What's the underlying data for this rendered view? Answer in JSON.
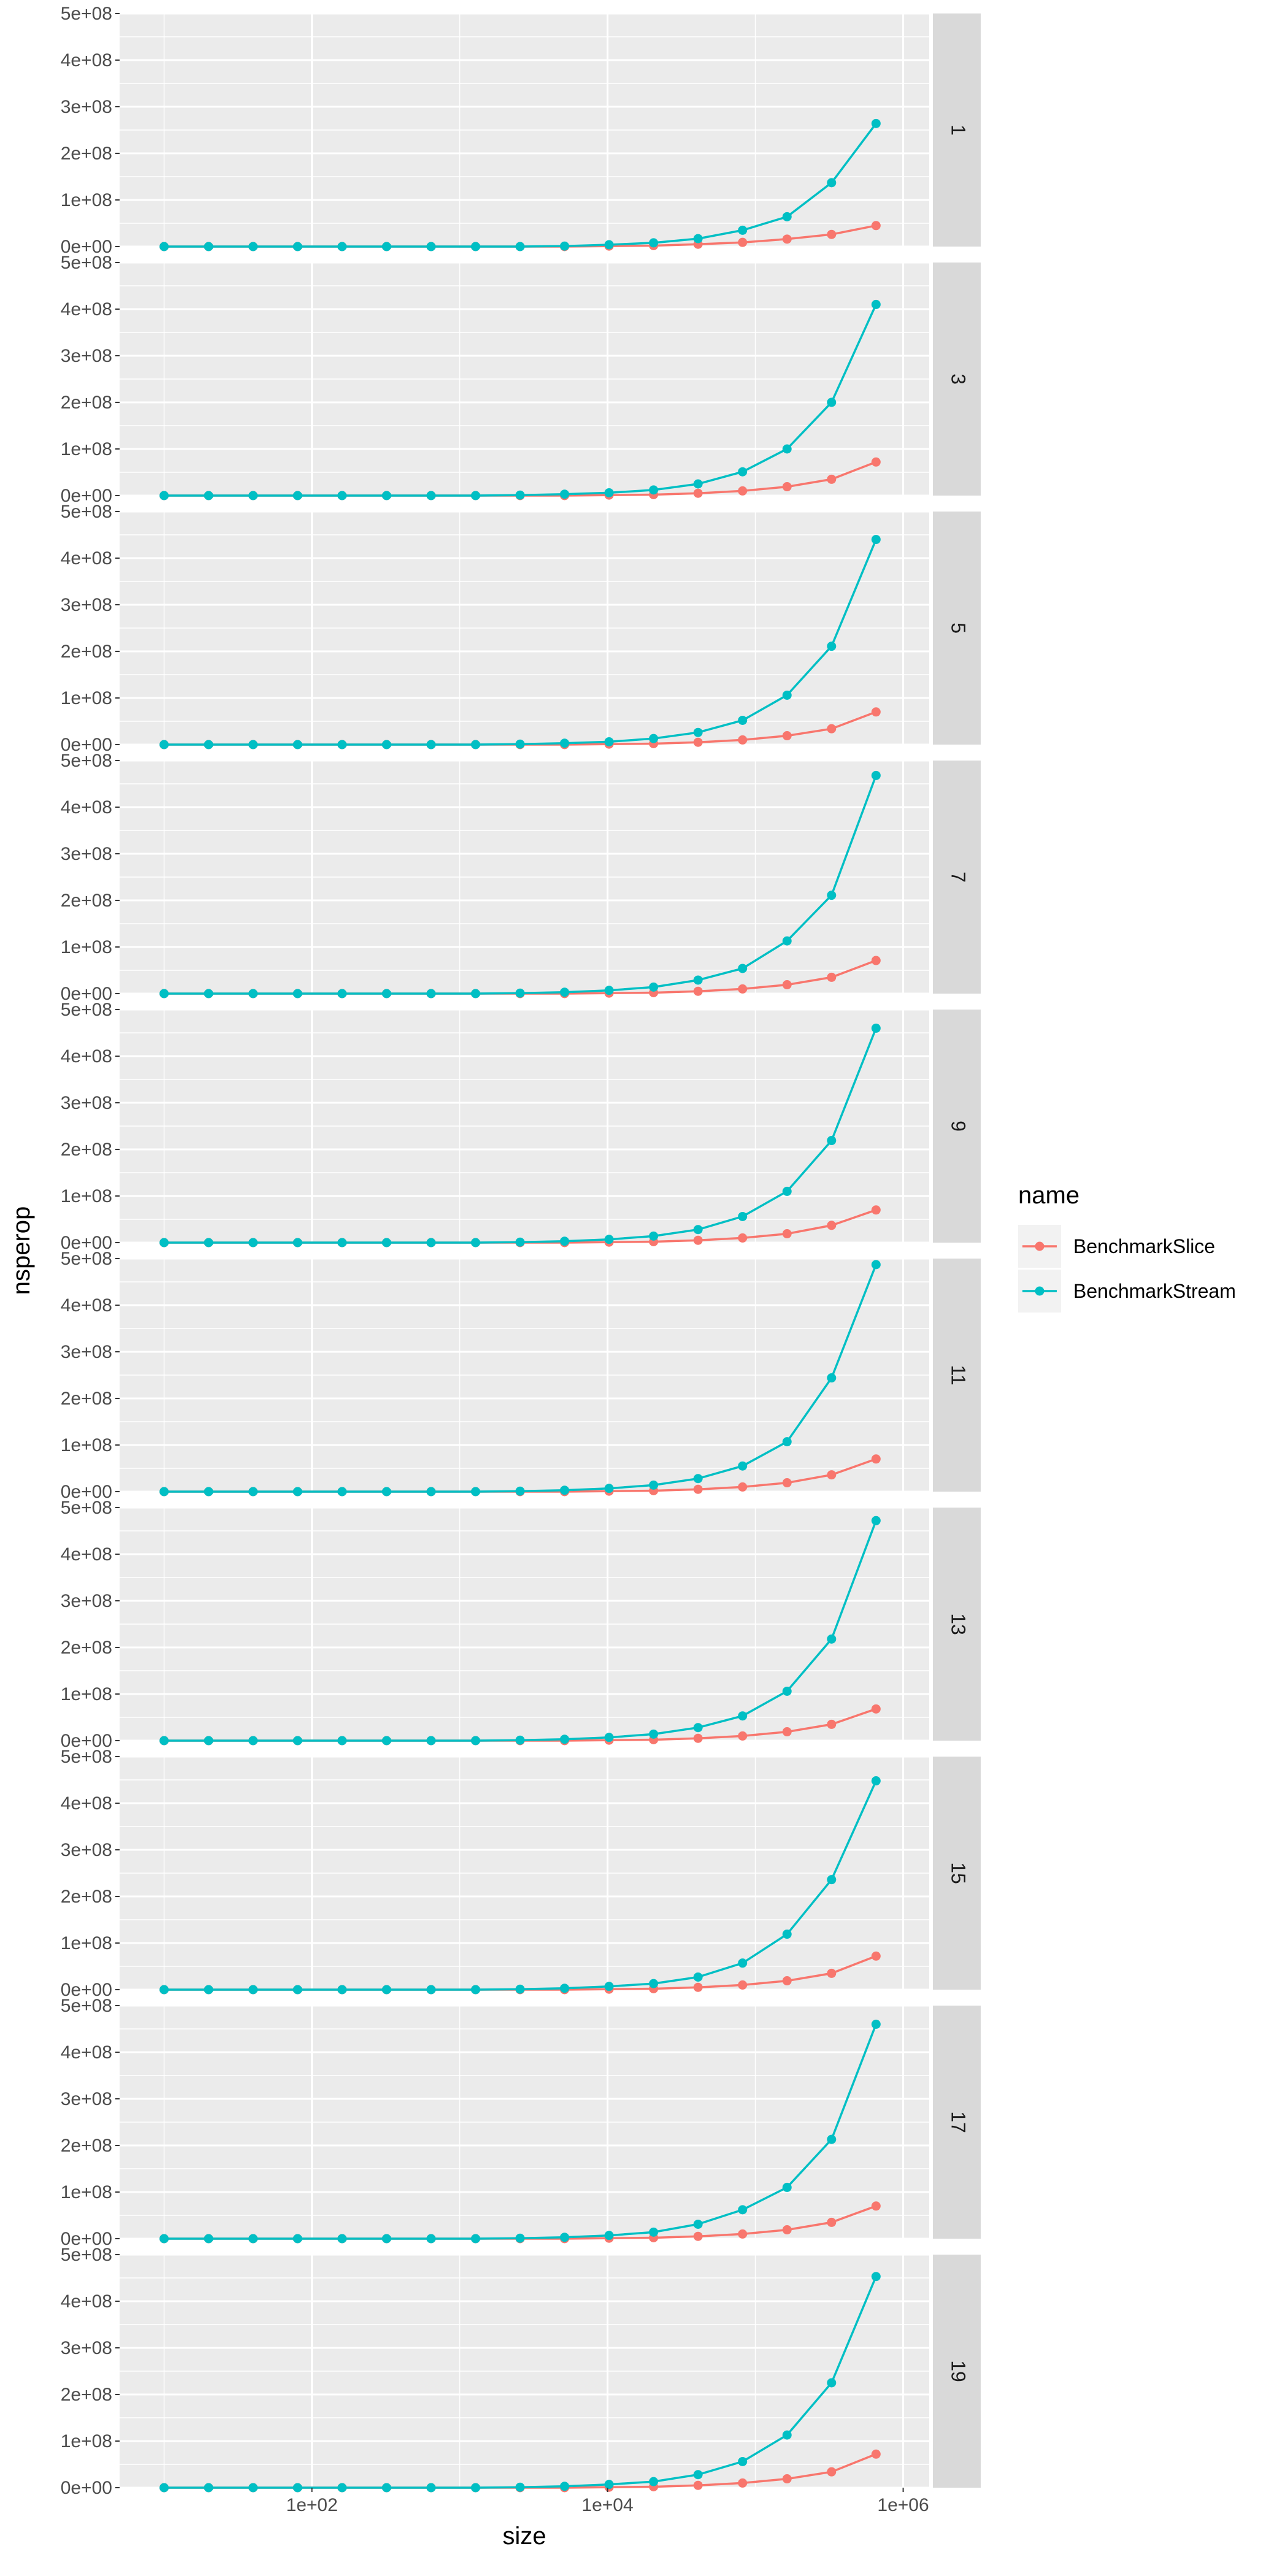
{
  "chart_data": {
    "type": "line",
    "markers": true,
    "xlabel": "size",
    "ylabel": "nsperop",
    "x_scale": "log10",
    "x_range": [
      5,
      1500000
    ],
    "x_ticks": [
      {
        "value": 100,
        "label": "1e+02"
      },
      {
        "value": 10000,
        "label": "1e+04"
      },
      {
        "value": 1000000,
        "label": "1e+06"
      }
    ],
    "y_range": [
      0,
      500000000
    ],
    "y_ticks": [
      {
        "value": 0,
        "label": "0e+00"
      },
      {
        "value": 100000000,
        "label": "1e+08"
      },
      {
        "value": 200000000,
        "label": "2e+08"
      },
      {
        "value": 300000000,
        "label": "3e+08"
      },
      {
        "value": 400000000,
        "label": "4e+08"
      },
      {
        "value": 500000000,
        "label": "5e+08"
      }
    ],
    "grid": true,
    "legend": {
      "title": "name",
      "position": "right"
    },
    "x": [
      10,
      20,
      40,
      80,
      160,
      320,
      640,
      1280,
      2560,
      5120,
      10240,
      20480,
      40960,
      81920,
      163840,
      327680,
      655360
    ],
    "facets": [
      {
        "label": "1",
        "series": [
          {
            "name": "BenchmarkSlice",
            "color": "#F8766D",
            "values": [
              0,
              0,
              0,
              0,
              0,
              0,
              0,
              0,
              0,
              0,
              1000000,
              2000000,
              5000000,
              9000000,
              16000000,
              26000000,
              45000000
            ]
          },
          {
            "name": "BenchmarkStream",
            "color": "#00BFC4",
            "values": [
              0,
              0,
              0,
              0,
              0,
              0,
              0,
              0,
              0,
              1000000,
              4000000,
              8000000,
              17000000,
              35000000,
              64000000,
              137000000,
              264000000
            ]
          }
        ]
      },
      {
        "label": "3",
        "series": [
          {
            "name": "BenchmarkSlice",
            "color": "#F8766D",
            "values": [
              0,
              0,
              0,
              0,
              0,
              0,
              0,
              0,
              0,
              0,
              1000000,
              2000000,
              5000000,
              10000000,
              19000000,
              35000000,
              72000000
            ]
          },
          {
            "name": "BenchmarkStream",
            "color": "#00BFC4",
            "values": [
              0,
              0,
              0,
              0,
              0,
              0,
              0,
              0,
              1000000,
              3000000,
              6000000,
              12000000,
              25000000,
              51000000,
              100000000,
              200000000,
              410000000
            ]
          }
        ]
      },
      {
        "label": "5",
        "series": [
          {
            "name": "BenchmarkSlice",
            "color": "#F8766D",
            "values": [
              0,
              0,
              0,
              0,
              0,
              0,
              0,
              0,
              0,
              0,
              1000000,
              2000000,
              5000000,
              10000000,
              19000000,
              34000000,
              70000000
            ]
          },
          {
            "name": "BenchmarkStream",
            "color": "#00BFC4",
            "values": [
              0,
              0,
              0,
              0,
              0,
              0,
              0,
              0,
              1000000,
              3000000,
              6000000,
              13000000,
              26000000,
              52000000,
              106000000,
              211000000,
              440000000
            ]
          }
        ]
      },
      {
        "label": "7",
        "series": [
          {
            "name": "BenchmarkSlice",
            "color": "#F8766D",
            "values": [
              0,
              0,
              0,
              0,
              0,
              0,
              0,
              0,
              0,
              0,
              1000000,
              2000000,
              5000000,
              10000000,
              19000000,
              35000000,
              71000000
            ]
          },
          {
            "name": "BenchmarkStream",
            "color": "#00BFC4",
            "values": [
              0,
              0,
              0,
              0,
              0,
              0,
              0,
              0,
              1000000,
              3000000,
              7000000,
              14000000,
              29000000,
              54000000,
              113000000,
              211000000,
              468000000
            ]
          }
        ]
      },
      {
        "label": "9",
        "series": [
          {
            "name": "BenchmarkSlice",
            "color": "#F8766D",
            "values": [
              0,
              0,
              0,
              0,
              0,
              0,
              0,
              0,
              0,
              0,
              1000000,
              2000000,
              5000000,
              10000000,
              19000000,
              37000000,
              70000000
            ]
          },
          {
            "name": "BenchmarkStream",
            "color": "#00BFC4",
            "values": [
              0,
              0,
              0,
              0,
              0,
              0,
              0,
              0,
              1000000,
              3000000,
              7000000,
              14000000,
              28000000,
              56000000,
              110000000,
              219000000,
              460000000
            ]
          }
        ]
      },
      {
        "label": "11",
        "series": [
          {
            "name": "BenchmarkSlice",
            "color": "#F8766D",
            "values": [
              0,
              0,
              0,
              0,
              0,
              0,
              0,
              0,
              0,
              0,
              1000000,
              2000000,
              5000000,
              10000000,
              19000000,
              36000000,
              70000000
            ]
          },
          {
            "name": "BenchmarkStream",
            "color": "#00BFC4",
            "values": [
              0,
              0,
              0,
              0,
              0,
              0,
              0,
              0,
              1000000,
              3000000,
              7000000,
              14000000,
              28000000,
              55000000,
              107000000,
              244000000,
              487000000
            ]
          }
        ]
      },
      {
        "label": "13",
        "series": [
          {
            "name": "BenchmarkSlice",
            "color": "#F8766D",
            "values": [
              0,
              0,
              0,
              0,
              0,
              0,
              0,
              0,
              0,
              0,
              1000000,
              2000000,
              5000000,
              10000000,
              19000000,
              35000000,
              68000000
            ]
          },
          {
            "name": "BenchmarkStream",
            "color": "#00BFC4",
            "values": [
              0,
              0,
              0,
              0,
              0,
              0,
              0,
              0,
              1000000,
              3000000,
              7000000,
              14000000,
              28000000,
              53000000,
              106000000,
              218000000,
              472000000
            ]
          }
        ]
      },
      {
        "label": "15",
        "series": [
          {
            "name": "BenchmarkSlice",
            "color": "#F8766D",
            "values": [
              0,
              0,
              0,
              0,
              0,
              0,
              0,
              0,
              0,
              0,
              1000000,
              2000000,
              5000000,
              10000000,
              19000000,
              35000000,
              72000000
            ]
          },
          {
            "name": "BenchmarkStream",
            "color": "#00BFC4",
            "values": [
              0,
              0,
              0,
              0,
              0,
              0,
              0,
              0,
              1000000,
              3000000,
              7000000,
              13000000,
              27000000,
              57000000,
              119000000,
              236000000,
              448000000
            ]
          }
        ]
      },
      {
        "label": "17",
        "series": [
          {
            "name": "BenchmarkSlice",
            "color": "#F8766D",
            "values": [
              0,
              0,
              0,
              0,
              0,
              0,
              0,
              0,
              0,
              0,
              1000000,
              2000000,
              5000000,
              10000000,
              19000000,
              35000000,
              70000000
            ]
          },
          {
            "name": "BenchmarkStream",
            "color": "#00BFC4",
            "values": [
              0,
              0,
              0,
              0,
              0,
              0,
              0,
              0,
              1000000,
              3000000,
              7000000,
              14000000,
              31000000,
              62000000,
              110000000,
              213000000,
              460000000
            ]
          }
        ]
      },
      {
        "label": "19",
        "series": [
          {
            "name": "BenchmarkSlice",
            "color": "#F8766D",
            "values": [
              0,
              0,
              0,
              0,
              0,
              0,
              0,
              0,
              0,
              0,
              1000000,
              2000000,
              5000000,
              10000000,
              19000000,
              34000000,
              72000000
            ]
          },
          {
            "name": "BenchmarkStream",
            "color": "#00BFC4",
            "values": [
              0,
              0,
              0,
              0,
              0,
              0,
              0,
              0,
              1000000,
              3000000,
              7000000,
              13000000,
              28000000,
              56000000,
              113000000,
              225000000,
              453000000
            ]
          }
        ]
      }
    ]
  }
}
